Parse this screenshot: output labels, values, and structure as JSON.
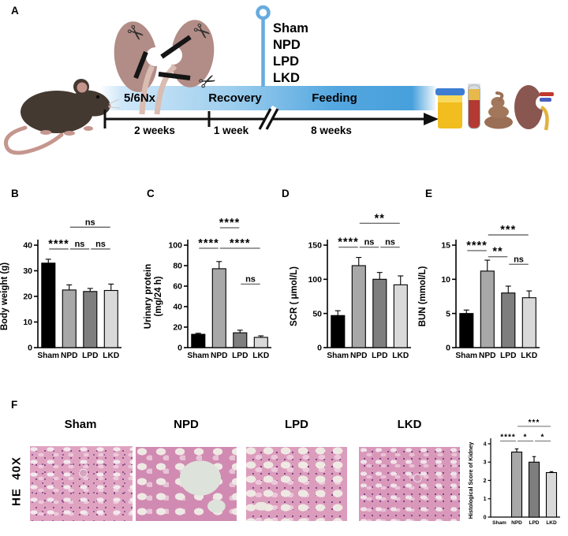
{
  "panel_labels": [
    "A",
    "B",
    "C",
    "D",
    "E",
    "F"
  ],
  "timeline": {
    "phases": [
      {
        "name": "5/6Nx",
        "duration": "2 weeks"
      },
      {
        "name": "Recovery",
        "duration": "1 week"
      },
      {
        "name": "Feeding",
        "duration": "8 weeks"
      }
    ],
    "intervention_groups": [
      "Sham",
      "NPD",
      "LPD",
      "LKD"
    ],
    "icons": [
      "mouse",
      "kidneys-with-scissors",
      "timeline-pin",
      "urine-sample-cup",
      "blood-tube",
      "feces",
      "kidney"
    ],
    "pin_color": "#67abdf",
    "band_colors": [
      "#cfe7f8",
      "#9fcfee",
      "#47a0dc"
    ]
  },
  "panel_f": {
    "stain": "HE  40X",
    "columns": [
      "Sham",
      "NPD",
      "LPD",
      "LKD"
    ]
  },
  "chart_data": [
    {
      "id": "body-weight",
      "type": "bar",
      "ylabel": [
        "Body weight (g)"
      ],
      "ylim": [
        0,
        40
      ],
      "yticks": [
        0,
        10,
        20,
        30,
        40
      ],
      "categories": [
        "Sham",
        "NPD",
        "LPD",
        "LKD"
      ],
      "values": [
        33,
        22.5,
        21.9,
        22.3
      ],
      "errors": [
        1.5,
        2,
        1.2,
        2.5
      ],
      "bar_colors": [
        "#000000",
        "#a8a8a8",
        "#7e7e7e",
        "#d9d9d9"
      ],
      "significance": [
        {
          "a": 0,
          "b": 1,
          "label": "****",
          "y": 38.5
        },
        {
          "a": 1,
          "b": 2,
          "label": "ns",
          "y": 38.5
        },
        {
          "a": 2,
          "b": 3,
          "label": "ns",
          "y": 38.5
        },
        {
          "a": 1,
          "b": 3,
          "label": "ns",
          "y": 47
        }
      ]
    },
    {
      "id": "urinary-protein",
      "type": "bar",
      "ylabel": [
        "Urinary protein",
        "(mg/24 h)"
      ],
      "ylim": [
        0,
        100
      ],
      "yticks": [
        0,
        20,
        40,
        60,
        80,
        100
      ],
      "categories": [
        "Sham",
        "NPD",
        "LPD",
        "LKD"
      ],
      "values": [
        13,
        77,
        14.5,
        10
      ],
      "errors": [
        1,
        7,
        2.5,
        1.5
      ],
      "bar_colors": [
        "#000000",
        "#a8a8a8",
        "#7e7e7e",
        "#d9d9d9"
      ],
      "significance": [
        {
          "a": 0,
          "b": 1,
          "label": "****",
          "y": 97
        },
        {
          "a": 1,
          "b": 2,
          "label": "****",
          "y": 117
        },
        {
          "a": 1,
          "b": 3,
          "label": "****",
          "y": 97
        },
        {
          "a": 2,
          "b": 3,
          "label": "ns",
          "y": 62
        }
      ]
    },
    {
      "id": "scr",
      "type": "bar",
      "ylabel": [
        "SCR ( μmol/L)"
      ],
      "ylim": [
        0,
        150
      ],
      "yticks": [
        0,
        50,
        100,
        150
      ],
      "categories": [
        "Sham",
        "NPD",
        "LPD",
        "LKD"
      ],
      "values": [
        47,
        120,
        100,
        92
      ],
      "errors": [
        7,
        12,
        10,
        13
      ],
      "bar_colors": [
        "#000000",
        "#a8a8a8",
        "#7e7e7e",
        "#d9d9d9"
      ],
      "significance": [
        {
          "a": 0,
          "b": 1,
          "label": "****",
          "y": 147
        },
        {
          "a": 1,
          "b": 2,
          "label": "ns",
          "y": 147
        },
        {
          "a": 2,
          "b": 3,
          "label": "ns",
          "y": 147
        },
        {
          "a": 1,
          "b": 3,
          "label": "**",
          "y": 182
        }
      ]
    },
    {
      "id": "bun",
      "type": "bar",
      "ylabel": [
        "BUN (mmol/L)"
      ],
      "ylim": [
        0,
        15
      ],
      "yticks": [
        0,
        5,
        10,
        15
      ],
      "categories": [
        "Sham",
        "NPD",
        "LPD",
        "LKD"
      ],
      "values": [
        5,
        11.2,
        8,
        7.3
      ],
      "errors": [
        0.5,
        1.6,
        1,
        1
      ],
      "bar_colors": [
        "#000000",
        "#a8a8a8",
        "#7e7e7e",
        "#d9d9d9"
      ],
      "significance": [
        {
          "a": 0,
          "b": 1,
          "label": "****",
          "y": 14.2
        },
        {
          "a": 1,
          "b": 2,
          "label": "**",
          "y": 13.3
        },
        {
          "a": 2,
          "b": 3,
          "label": "ns",
          "y": 12.2
        },
        {
          "a": 1,
          "b": 3,
          "label": "***",
          "y": 16.5
        }
      ]
    },
    {
      "id": "histological-score",
      "type": "bar",
      "ylabel": [
        "Histological Score of Kidney"
      ],
      "ylim": [
        0,
        4
      ],
      "yticks": [
        0,
        1,
        2,
        3,
        4
      ],
      "categories": [
        "Sham",
        "NPD",
        "LPD",
        "LKD"
      ],
      "values": [
        0,
        3.55,
        3.0,
        2.43
      ],
      "errors": [
        0,
        0.17,
        0.3,
        0.05
      ],
      "bar_colors": [
        "#000000",
        "#a8a8a8",
        "#7e7e7e",
        "#d9d9d9"
      ],
      "significance": [
        {
          "a": 0,
          "b": 1,
          "label": "****",
          "y": 4.15
        },
        {
          "a": 1,
          "b": 2,
          "label": "*",
          "y": 4.15
        },
        {
          "a": 2,
          "b": 3,
          "label": "*",
          "y": 4.15
        },
        {
          "a": 1,
          "b": 3,
          "label": "***",
          "y": 4.95
        }
      ]
    }
  ]
}
